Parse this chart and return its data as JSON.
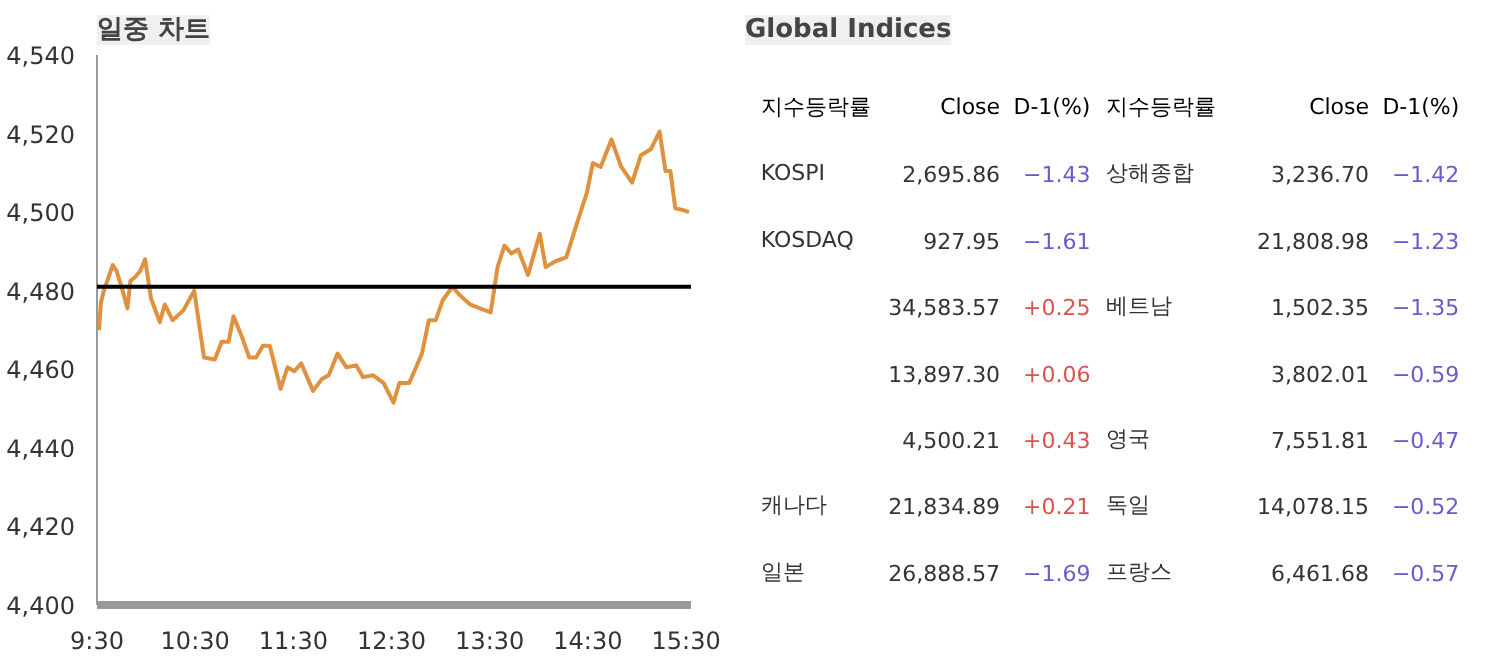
{
  "chart_data": [
    {
      "type": "line",
      "title": "일중 차트",
      "x": [
        9.52,
        9.54,
        9.57,
        9.66,
        9.7,
        9.75,
        9.81,
        9.84,
        9.89,
        9.94,
        9.99,
        10.05,
        10.14,
        10.19,
        10.27,
        10.38,
        10.49,
        10.59,
        10.7,
        10.77,
        10.84,
        10.89,
        10.98,
        11.05,
        11.12,
        11.19,
        11.26,
        11.37,
        11.44,
        11.51,
        11.58,
        11.7,
        11.79,
        11.86,
        11.95,
        12.04,
        12.14,
        12.21,
        12.31,
        12.42,
        12.52,
        12.58,
        12.68,
        12.81,
        12.88,
        12.95,
        13.02,
        13.12,
        13.19,
        13.3,
        13.4,
        13.51,
        13.58,
        13.65,
        13.72,
        13.79,
        13.89,
        14.01,
        14.07,
        14.17,
        14.28,
        14.38,
        14.49,
        14.55,
        14.63,
        14.74,
        14.84,
        14.95,
        15.04,
        15.14,
        15.23,
        15.29,
        15.34,
        15.39,
        15.47,
        15.53
      ],
      "series": [
        {
          "color": "#e0913e",
          "values": [
            4470,
            4477,
            4480,
            4486.5,
            4485,
            4481,
            4475.5,
            4482.5,
            4483.5,
            4485,
            4488,
            4478,
            4472,
            4476.5,
            4472.5,
            4475,
            4480,
            4463,
            4462.5,
            4467,
            4467,
            4473.5,
            4468,
            4463,
            4463,
            4466,
            4466,
            4455,
            4460.5,
            4459.5,
            4461.5,
            4454.5,
            4457.5,
            4458.5,
            4464,
            4460.5,
            4461,
            4458,
            4458.5,
            4456.5,
            4451.5,
            4456.5,
            4456.5,
            4464,
            4472.5,
            4472.5,
            4477.5,
            4481,
            4479,
            4476.5,
            4475.5,
            4474.5,
            4486,
            4491.5,
            4489.5,
            4490.5,
            4484,
            4494.5,
            4486,
            4487.5,
            4488.5,
            4496.5,
            4505,
            4512.5,
            4511.5,
            4518.5,
            4511.5,
            4507.5,
            4514.5,
            4516,
            4520.5,
            4510.5,
            4510.5,
            4501,
            4500.5,
            4500
          ]
        }
      ],
      "xlim": [
        9.5,
        15.55
      ],
      "xticks": [
        {
          "value": 9.5,
          "label": "9:30"
        },
        {
          "value": 10.5,
          "label": "10:30"
        },
        {
          "value": 11.5,
          "label": "11:30"
        },
        {
          "value": 12.5,
          "label": "12:30"
        },
        {
          "value": 13.5,
          "label": "13:30"
        },
        {
          "value": 14.5,
          "label": "14:30"
        },
        {
          "value": 15.5,
          "label": "15:30"
        }
      ],
      "ylim": [
        4400,
        4540
      ],
      "yticks": [
        {
          "value": 4400,
          "label": "4,400"
        },
        {
          "value": 4420,
          "label": "4,420"
        },
        {
          "value": 4440,
          "label": "4,440"
        },
        {
          "value": 4460,
          "label": "4,460"
        },
        {
          "value": 4480,
          "label": "4,480"
        },
        {
          "value": 4500,
          "label": "4,500"
        },
        {
          "value": 4520,
          "label": "4,520"
        },
        {
          "value": 4540,
          "label": "4,540"
        }
      ],
      "ref_lines": [
        {
          "axis": "y",
          "value": 4481,
          "color": "#000000"
        }
      ],
      "grid": false,
      "marker": "none",
      "line_style": "solid"
    },
    {
      "type": "other",
      "title": "Global Indices",
      "annotations": [
        "지수등락률",
        "Close",
        "D-1(%)",
        "지수등락률",
        "Close",
        "D-1(%)",
        "KOSPI",
        "2,695.86",
        "−1.43",
        "상해종합",
        "3,236.70",
        "−1.42",
        "KOSDAQ",
        "927.95",
        "−1.61",
        null,
        "21,808.98",
        "−1.23",
        null,
        "34,583.57",
        "+0.25",
        "베트남",
        "1,502.35",
        "−1.35",
        null,
        "13,897.30",
        "+0.06",
        null,
        "3,802.01",
        "−0.59",
        null,
        "4,500.21",
        "+0.43",
        "영국",
        "7,551.81",
        "−0.47",
        "캐나다",
        "21,834.89",
        "+0.21",
        "독일",
        "14,078.15",
        "−0.52",
        "일본",
        "26,888.57",
        "−1.69",
        "프랑스",
        "6,461.68",
        "−0.57"
      ],
      "colors": [
        "#000000",
        "#000000",
        "#000000",
        "#000000",
        "#000000",
        "#000000",
        "#333333",
        "#333333",
        "#6a5acd",
        "#333333",
        "#333333",
        "#6a5acd",
        "#333333",
        "#333333",
        "#6a5acd",
        "#333333",
        "#333333",
        "#6a5acd",
        "#333333",
        "#333333",
        "#d9534f",
        "#333333",
        "#333333",
        "#6a5acd",
        "#333333",
        "#333333",
        "#d9534f",
        "#333333",
        "#333333",
        "#6a5acd",
        "#333333",
        "#333333",
        "#d9534f",
        "#333333",
        "#333333",
        "#6a5acd",
        "#333333",
        "#333333",
        "#d9534f",
        "#333333",
        "#333333",
        "#6a5acd",
        "#333333",
        "#333333",
        "#6a5acd",
        "#333333",
        "#333333",
        "#6a5acd"
      ]
    }
  ]
}
